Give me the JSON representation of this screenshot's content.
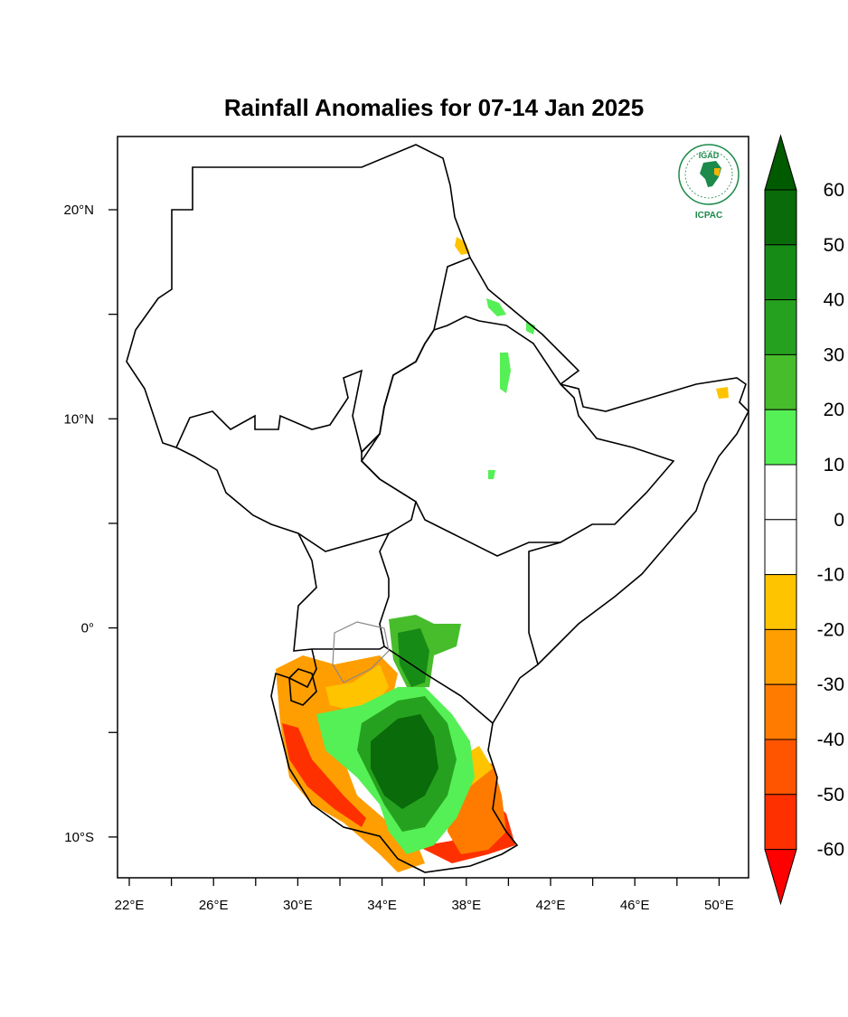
{
  "title": "Rainfall Anomalies for 07-14 Jan 2025",
  "logo": {
    "top_text": "IGAD",
    "bottom_text": "ICPAC",
    "color": "#1b8a4a",
    "accent": "#f4b400"
  },
  "map": {
    "lon_ticks": [
      "22°E",
      "26°E",
      "30°E",
      "34°E",
      "38°E",
      "42°E",
      "46°E",
      "50°E"
    ],
    "lat_ticks": [
      "20°N",
      "10°N",
      "0°",
      "10°S"
    ],
    "lon_range": [
      21.5,
      51.5
    ],
    "lat_range": [
      -11.5,
      23.5
    ]
  },
  "colorbar": {
    "labels": [
      "60",
      "50",
      "40",
      "30",
      "20",
      "10",
      "0",
      "-10",
      "-20",
      "-30",
      "-40",
      "-50",
      "-60"
    ],
    "bins": [
      {
        "range": "50-60",
        "color": "#0a6b0a"
      },
      {
        "range": "40-50",
        "color": "#168c16"
      },
      {
        "range": "30-40",
        "color": "#26a11f"
      },
      {
        "range": "20-30",
        "color": "#47bd2b"
      },
      {
        "range": "10-20",
        "color": "#55f055"
      },
      {
        "range": "0-10",
        "color": "#ffffff"
      },
      {
        "range": "-10-0",
        "color": "#ffffff"
      },
      {
        "range": "-20--10",
        "color": "#ffc400"
      },
      {
        "range": "-30--20",
        "color": "#ff9e00"
      },
      {
        "range": "-40--30",
        "color": "#ff7b00"
      },
      {
        "range": "-50--40",
        "color": "#ff5500"
      },
      {
        "range": "-60--50",
        "color": "#ff3000"
      }
    ],
    "over_color": "#005a00",
    "under_color": "#ff0000"
  }
}
